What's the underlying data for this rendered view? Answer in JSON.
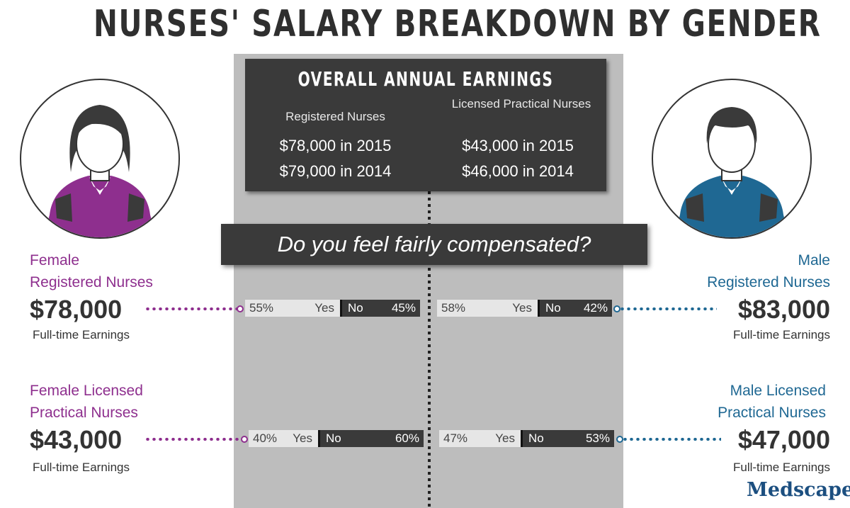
{
  "title": "NURSES' SALARY BREAKDOWN BY GENDER",
  "overall_earnings": {
    "title": "OVERALL ANNUAL EARNINGS",
    "columns": [
      {
        "header": "Registered Nurses",
        "values": [
          "$78,000 in 2015",
          "$79,000 in 2014"
        ]
      },
      {
        "header": "Licensed Practical Nurses",
        "values": [
          "$43,000 in 2015",
          "$46,000 in 2014"
        ]
      }
    ]
  },
  "question": "Do you feel fairly compensated?",
  "groups": {
    "female_rn": {
      "label_line1": "Female",
      "label_line2": "Registered Nurses",
      "salary": "$78,000",
      "sublabel": "Full-time Earnings"
    },
    "female_lpn": {
      "label_line1": "Female Licensed",
      "label_line2": "Practical Nurses",
      "salary": "$43,000",
      "sublabel": "Full-time Earnings"
    },
    "male_rn": {
      "label_line1": "Male",
      "label_line2": "Registered Nurses",
      "salary": "$83,000",
      "sublabel": "Full-time Earnings"
    },
    "male_lpn": {
      "label_line1": "Male Licensed",
      "label_line2": "Practical Nurses",
      "salary": "$47,000",
      "sublabel": "Full-time Earnings"
    }
  },
  "chart_data": {
    "type": "bar",
    "categories": [
      "Female Registered Nurses",
      "Male Registered Nurses",
      "Female Licensed Practical Nurses",
      "Male Licensed Practical Nurses"
    ],
    "series": [
      {
        "name": "Yes",
        "values": [
          55,
          58,
          40,
          47
        ]
      },
      {
        "name": "No",
        "values": [
          45,
          42,
          60,
          53
        ]
      }
    ],
    "labels": {
      "yes": "Yes",
      "no": "No",
      "female_rn": {
        "yes_pct": "55%",
        "no_pct": "45%"
      },
      "male_rn": {
        "yes_pct": "58%",
        "no_pct": "42%"
      },
      "female_lpn": {
        "yes_pct": "40%",
        "no_pct": "60%"
      },
      "male_lpn": {
        "yes_pct": "47%",
        "no_pct": "53%"
      }
    },
    "ylim": [
      0,
      100
    ]
  },
  "icons": {
    "female": "female-nurse-icon",
    "male": "male-nurse-icon"
  },
  "colors": {
    "female": "#8e2f8e",
    "male": "#1f6893",
    "dark": "#3a3a3a",
    "band": "#bdbdbd"
  },
  "brand": "Medscape"
}
